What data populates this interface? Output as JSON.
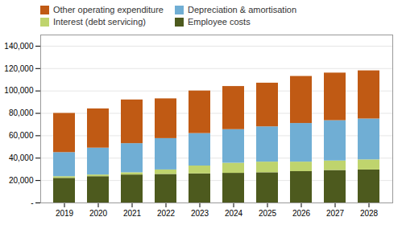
{
  "chart_data": {
    "type": "bar",
    "stacked": true,
    "categories": [
      "2019",
      "2020",
      "2021",
      "2022",
      "2023",
      "2024",
      "2025",
      "2026",
      "2027",
      "2028"
    ],
    "series": [
      {
        "name": "Employee costs",
        "color": "#4d5a1e",
        "values": [
          22000,
          23500,
          25000,
          25500,
          26000,
          26500,
          27000,
          28000,
          29000,
          29500
        ]
      },
      {
        "name": "Interest (debt servicing)",
        "color": "#bfd46d",
        "values": [
          1500,
          1500,
          2000,
          4000,
          7000,
          9000,
          9500,
          8500,
          8500,
          9000
        ]
      },
      {
        "name": "Depreciation & amortisation",
        "color": "#70aed4",
        "values": [
          21500,
          24000,
          26000,
          28000,
          29000,
          30000,
          31500,
          34500,
          36000,
          36500
        ]
      },
      {
        "name": "Other operating expenditure",
        "color": "#c05a14",
        "values": [
          35000,
          35000,
          39000,
          35500,
          38000,
          38500,
          39000,
          42000,
          42500,
          43000
        ]
      }
    ],
    "ylim": [
      0,
      150000
    ],
    "yticks": [
      {
        "value": 0,
        "label": "-"
      },
      {
        "value": 20000,
        "label": "20,000"
      },
      {
        "value": 40000,
        "label": "40,000"
      },
      {
        "value": 60000,
        "label": "60,000"
      },
      {
        "value": 80000,
        "label": "80,000"
      },
      {
        "value": 100000,
        "label": "100,000"
      },
      {
        "value": 120000,
        "label": "120,000"
      },
      {
        "value": 140000,
        "label": "140,000"
      }
    ],
    "grid": true,
    "legend": "upper left"
  }
}
